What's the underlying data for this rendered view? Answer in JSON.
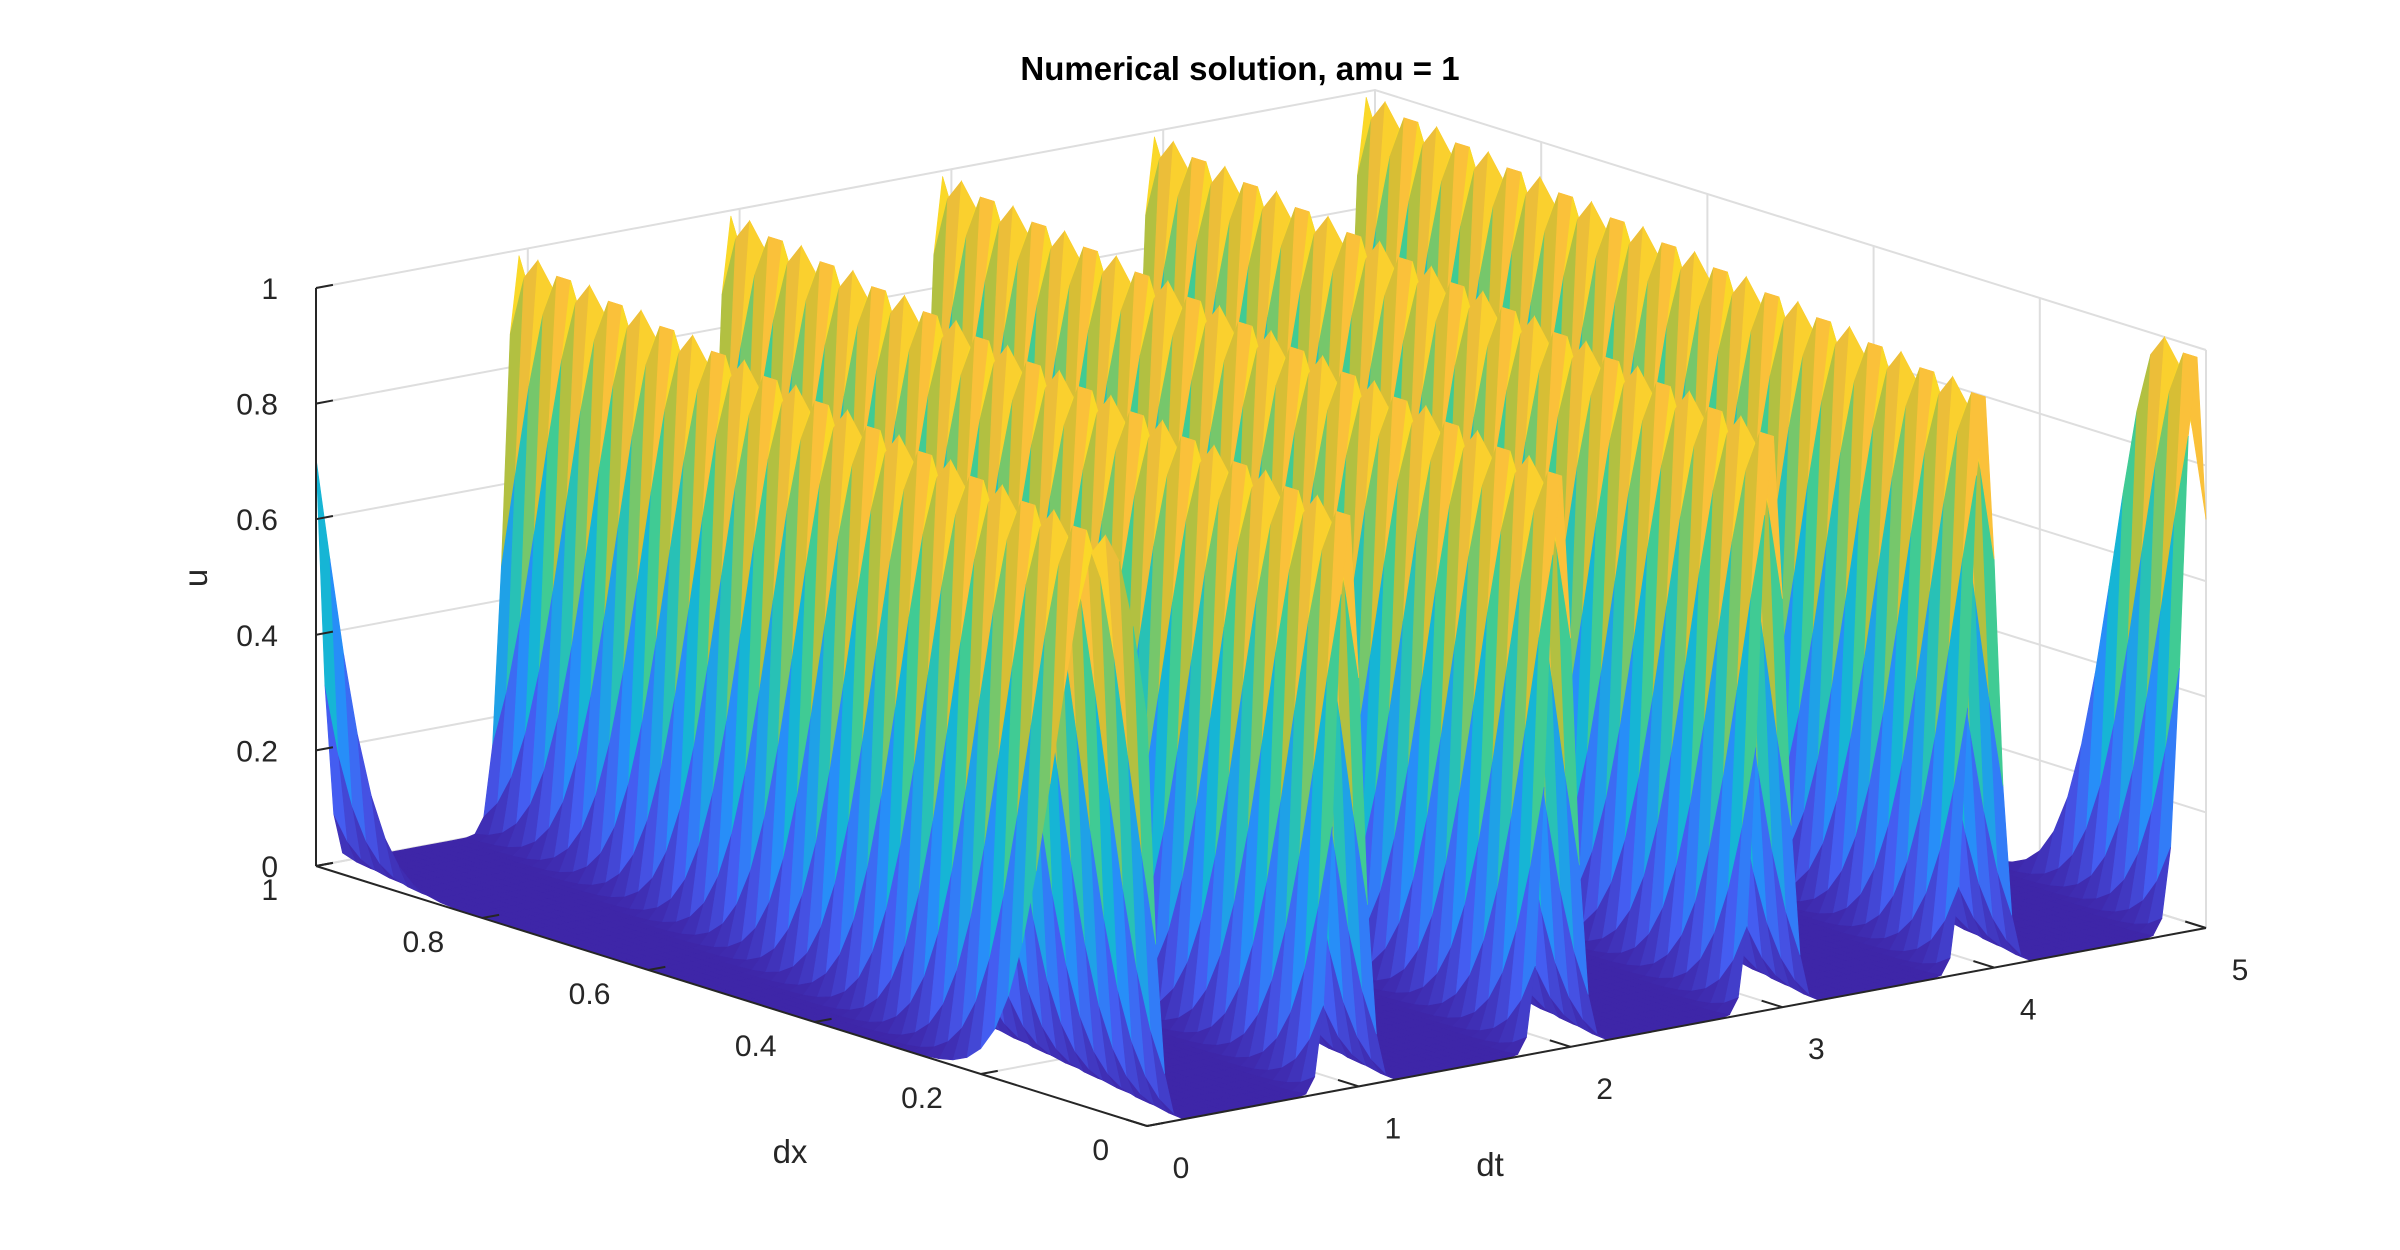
{
  "figure": {
    "title": "Numerical solution, amu = 1"
  },
  "chart_data": {
    "type": "surface",
    "title": "Numerical solution, amu = 1",
    "xlabel": "dt",
    "ylabel": "dx",
    "zlabel": "u",
    "xlim": [
      0,
      5
    ],
    "ylim": [
      0,
      1
    ],
    "zlim": [
      0,
      1
    ],
    "xticks": [
      "0",
      "1",
      "2",
      "3",
      "4",
      "5"
    ],
    "yticks": [
      "0",
      "0.2",
      "0.4",
      "0.6",
      "0.8",
      "1"
    ],
    "zticks": [
      "0",
      "0.2",
      "0.4",
      "0.6",
      "0.8",
      "1"
    ],
    "grid": true,
    "colormap": "parula",
    "description_of_surface": "travelling pulse u(t,x) with period 1 in t, pulse width ~0.15 in x, max value 1",
    "pulse": {
      "amplitude": 1,
      "x_center_at_t0": 0.05,
      "speed_in_x_per_unit_t": 1,
      "period_in_t": 1,
      "width": 0.06
    },
    "colors": {
      "axis": "#262626",
      "grid": "#dedede",
      "low": "#3e26a8",
      "high": "#f9fb0e"
    }
  }
}
